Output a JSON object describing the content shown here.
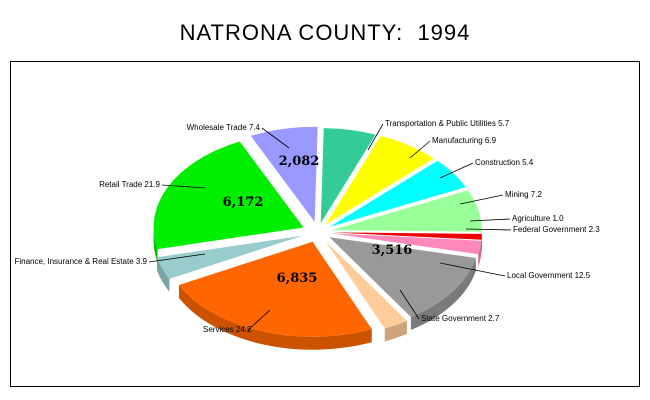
{
  "chart_data": {
    "type": "pie",
    "title": "NATRONA COUNTY:  1994",
    "slices": [
      {
        "label": "Transportation & Public Utilities 5.7",
        "category": "Transportation & Public Utilities",
        "value": 5.7,
        "color": "#33cc99"
      },
      {
        "label": "Manufacturing 6.9",
        "category": "Manufacturing",
        "value": 6.9,
        "color": "#ffff00"
      },
      {
        "label": "Construction 5.4",
        "category": "Construction",
        "value": 5.4,
        "color": "#00ffff"
      },
      {
        "label": "Mining 7.2",
        "category": "Mining",
        "value": 7.2,
        "color": "#99ff99"
      },
      {
        "label": "Agriculture 1.0",
        "category": "Agriculture",
        "value": 1.0,
        "color": "#ee0000"
      },
      {
        "label": "Federal Government 2.3",
        "category": "Federal Government",
        "value": 2.3,
        "color": "#ff88bb"
      },
      {
        "label": "Local Government 12.5",
        "category": "Local Government",
        "value": 12.5,
        "color": "#999999",
        "count": "3,516"
      },
      {
        "label": "State Government 2.7",
        "category": "State Government",
        "value": 2.7,
        "color": "#ffcc99"
      },
      {
        "label": "Services 24.2",
        "category": "Services",
        "value": 24.2,
        "color": "#ff6600",
        "count": "6,835"
      },
      {
        "label": "Finance, Insurance & Real Estate 3.9",
        "category": "Finance, Insurance & Real Estate",
        "value": 3.9,
        "color": "#99cccc"
      },
      {
        "label": "Retail Trade 21.9",
        "category": "Retail Trade",
        "value": 21.9,
        "color": "#00ee00",
        "count": "6,172"
      },
      {
        "label": "Wholesale Trade 7.4",
        "category": "Wholesale Trade",
        "value": 7.4,
        "color": "#9999ff",
        "count": "2,082"
      }
    ],
    "legend": "none"
  }
}
